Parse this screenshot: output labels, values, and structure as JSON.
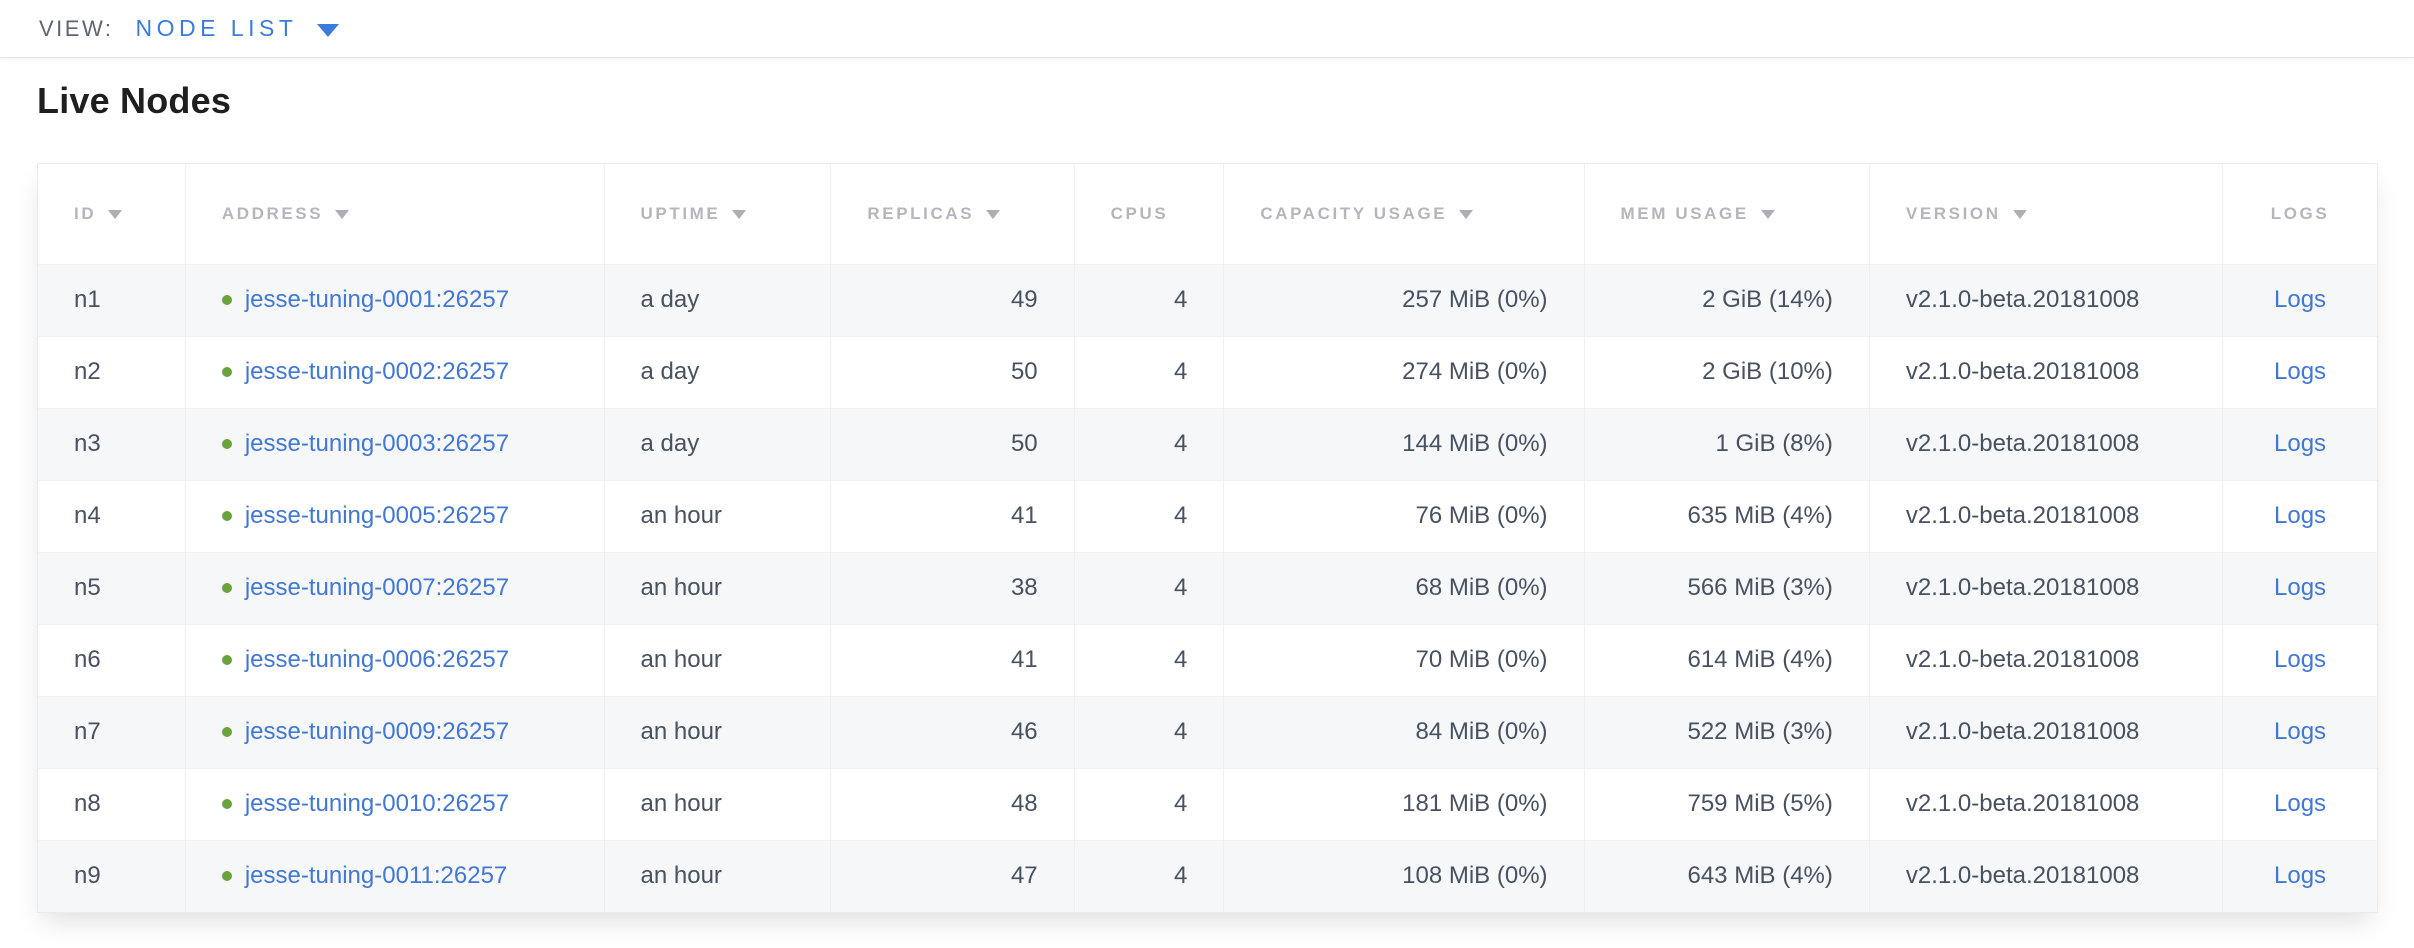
{
  "toolbar": {
    "view_label": "VIEW:",
    "view_value": "NODE LIST"
  },
  "page": {
    "title": "Live Nodes"
  },
  "colors": {
    "accent_blue": "#3b7cdb",
    "link_blue": "#4277d4",
    "live_status_green": "#68a33d",
    "header_text_gray": "#b3b7bd",
    "cell_text": "#475160"
  },
  "table": {
    "columns": [
      {
        "key": "id",
        "label": "ID",
        "sortable": true,
        "header_align": "al",
        "cell_align": "al"
      },
      {
        "key": "address",
        "label": "ADDRESS",
        "sortable": true,
        "header_align": "al",
        "cell_align": "al"
      },
      {
        "key": "uptime",
        "label": "UPTIME",
        "sortable": true,
        "header_align": "al",
        "cell_align": "al"
      },
      {
        "key": "replicas",
        "label": "REPLICAS",
        "sortable": true,
        "header_align": "al",
        "cell_align": "ar"
      },
      {
        "key": "cpus",
        "label": "CPUS",
        "sortable": false,
        "header_align": "al",
        "cell_align": "ar"
      },
      {
        "key": "capacity",
        "label": "CAPACITY USAGE",
        "sortable": true,
        "header_align": "al",
        "cell_align": "ar"
      },
      {
        "key": "mem",
        "label": "MEM USAGE",
        "sortable": true,
        "header_align": "al",
        "cell_align": "ar"
      },
      {
        "key": "version",
        "label": "VERSION",
        "sortable": true,
        "header_align": "al",
        "cell_align": "al"
      },
      {
        "key": "logs",
        "label": "LOGS",
        "sortable": false,
        "header_align": "ac",
        "cell_align": "ac"
      }
    ],
    "rows": [
      {
        "id": "n1",
        "status": "live",
        "address": "jesse-tuning-0001:26257",
        "uptime": "a day",
        "replicas": "49",
        "cpus": "4",
        "capacity": "257 MiB (0%)",
        "mem": "2 GiB (14%)",
        "version": "v2.1.0-beta.20181008",
        "logs": "Logs"
      },
      {
        "id": "n2",
        "status": "live",
        "address": "jesse-tuning-0002:26257",
        "uptime": "a day",
        "replicas": "50",
        "cpus": "4",
        "capacity": "274 MiB (0%)",
        "mem": "2 GiB (10%)",
        "version": "v2.1.0-beta.20181008",
        "logs": "Logs"
      },
      {
        "id": "n3",
        "status": "live",
        "address": "jesse-tuning-0003:26257",
        "uptime": "a day",
        "replicas": "50",
        "cpus": "4",
        "capacity": "144 MiB (0%)",
        "mem": "1 GiB (8%)",
        "version": "v2.1.0-beta.20181008",
        "logs": "Logs"
      },
      {
        "id": "n4",
        "status": "live",
        "address": "jesse-tuning-0005:26257",
        "uptime": "an hour",
        "replicas": "41",
        "cpus": "4",
        "capacity": "76 MiB (0%)",
        "mem": "635 MiB (4%)",
        "version": "v2.1.0-beta.20181008",
        "logs": "Logs"
      },
      {
        "id": "n5",
        "status": "live",
        "address": "jesse-tuning-0007:26257",
        "uptime": "an hour",
        "replicas": "38",
        "cpus": "4",
        "capacity": "68 MiB (0%)",
        "mem": "566 MiB (3%)",
        "version": "v2.1.0-beta.20181008",
        "logs": "Logs"
      },
      {
        "id": "n6",
        "status": "live",
        "address": "jesse-tuning-0006:26257",
        "uptime": "an hour",
        "replicas": "41",
        "cpus": "4",
        "capacity": "70 MiB (0%)",
        "mem": "614 MiB (4%)",
        "version": "v2.1.0-beta.20181008",
        "logs": "Logs"
      },
      {
        "id": "n7",
        "status": "live",
        "address": "jesse-tuning-0009:26257",
        "uptime": "an hour",
        "replicas": "46",
        "cpus": "4",
        "capacity": "84 MiB (0%)",
        "mem": "522 MiB (3%)",
        "version": "v2.1.0-beta.20181008",
        "logs": "Logs"
      },
      {
        "id": "n8",
        "status": "live",
        "address": "jesse-tuning-0010:26257",
        "uptime": "an hour",
        "replicas": "48",
        "cpus": "4",
        "capacity": "181 MiB (0%)",
        "mem": "759 MiB (5%)",
        "version": "v2.1.0-beta.20181008",
        "logs": "Logs"
      },
      {
        "id": "n9",
        "status": "live",
        "address": "jesse-tuning-0011:26257",
        "uptime": "an hour",
        "replicas": "47",
        "cpus": "4",
        "capacity": "108 MiB (0%)",
        "mem": "643 MiB (4%)",
        "version": "v2.1.0-beta.20181008",
        "logs": "Logs"
      }
    ]
  }
}
